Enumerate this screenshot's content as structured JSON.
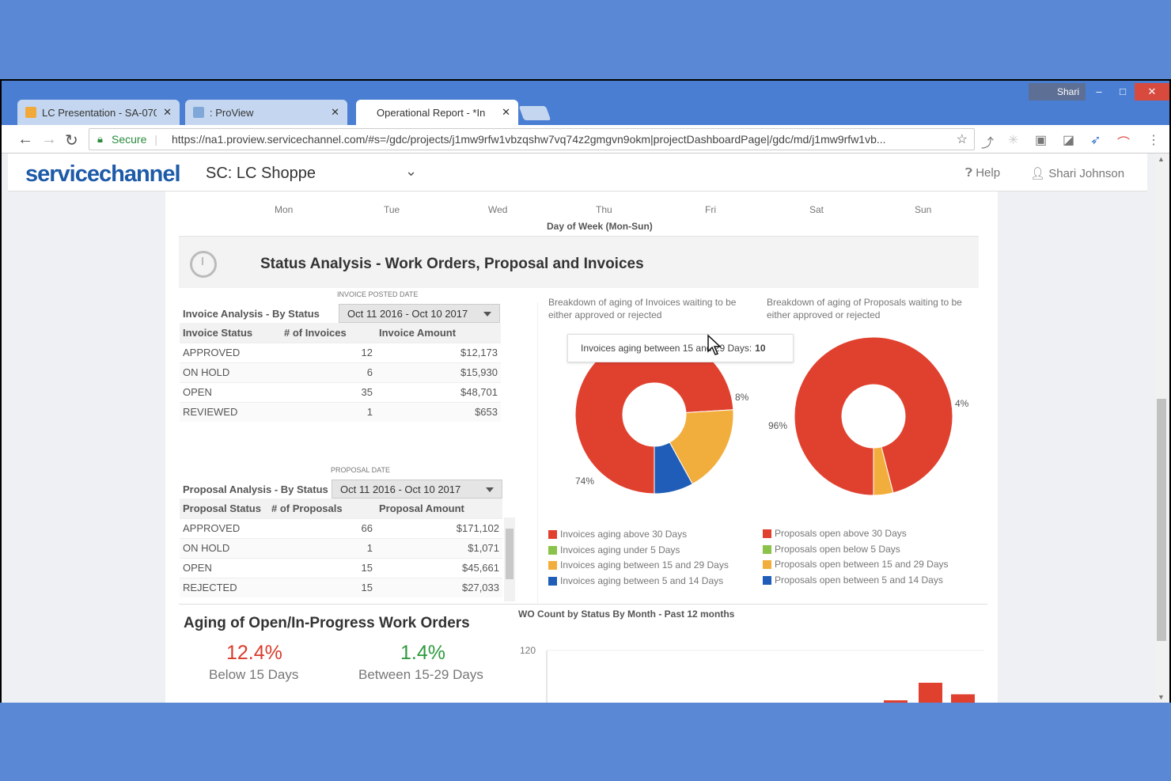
{
  "browser": {
    "tabs": [
      {
        "title": "LC Presentation - SA-070",
        "icon": "slides-icon",
        "color": "#f1a93a"
      },
      {
        "title": ": ProView",
        "icon": "proview-icon",
        "color": "#7fa8d8"
      },
      {
        "title": "Operational Report - *In",
        "icon": "none",
        "color": "#ffffff"
      }
    ],
    "user": "Shari",
    "secure_label": "Secure",
    "url": "https://na1.proview.servicechannel.com/#s=/gdc/projects/j1mw9rfw1vbzqshw7vq74z2gmgvn9okm|projectDashboardPage|/gdc/md/j1mw9rfw1vb..."
  },
  "header": {
    "logo": "servicechannel",
    "org": "SC: LC Shoppe",
    "help": "Help",
    "user": "Shari Johnson"
  },
  "week_axis": {
    "days": [
      "Mon",
      "Tue",
      "Wed",
      "Thu",
      "Fri",
      "Sat",
      "Sun"
    ],
    "title": "Day of Week (Mon-Sun)"
  },
  "status_panel": {
    "title": "Status Analysis - Work Orders, Proposal and Invoices"
  },
  "invoice": {
    "date_caption": "INVOICE POSTED DATE",
    "label": "Invoice Analysis - By Status",
    "date_range": "Oct 11 2016 - Oct 10 2017",
    "columns": [
      "Invoice Status",
      "# of Invoices",
      "Invoice Amount"
    ],
    "rows": [
      {
        "status": "APPROVED",
        "count": "12",
        "amount": "$12,173"
      },
      {
        "status": "ON HOLD",
        "count": "6",
        "amount": "$15,930"
      },
      {
        "status": "OPEN",
        "count": "35",
        "amount": "$48,701"
      },
      {
        "status": "REVIEWED",
        "count": "1",
        "amount": "$653"
      }
    ]
  },
  "proposal": {
    "date_caption": "PROPOSAL DATE",
    "label": "Proposal Analysis - By Status",
    "date_range": "Oct 11 2016 - Oct 10 2017",
    "columns": [
      "Proposal Status",
      "# of Proposals",
      "Proposal Amount"
    ],
    "rows": [
      {
        "status": "APPROVED",
        "count": "66",
        "amount": "$171,102"
      },
      {
        "status": "ON HOLD",
        "count": "1",
        "amount": "$1,071"
      },
      {
        "status": "OPEN",
        "count": "15",
        "amount": "$45,661"
      },
      {
        "status": "REJECTED",
        "count": "15",
        "amount": "$27,033"
      }
    ]
  },
  "invoice_donut": {
    "description": "Breakdown of aging of Invoices waiting to be either approved or rejected",
    "tooltip_label": "Invoices aging between 15 and 29 Days:",
    "tooltip_value": "10",
    "slice_labels": [
      "74%",
      "8%"
    ],
    "legend": [
      {
        "label": "Invoices aging above 30 Days",
        "color": "#e0412f"
      },
      {
        "label": "Invoices aging under 5 Days",
        "color": "#8bc34a"
      },
      {
        "label": "Invoices aging between 15 and 29 Days",
        "color": "#f2ae3d"
      },
      {
        "label": "Invoices aging between 5 and 14 Days",
        "color": "#1f5db8"
      }
    ]
  },
  "proposal_donut": {
    "description": "Breakdown of aging of Proposals waiting to be either approved or rejected",
    "slice_labels": [
      "96%",
      "4%"
    ],
    "legend": [
      {
        "label": "Proposals open above 30 Days",
        "color": "#e0412f"
      },
      {
        "label": "Proposals open below 5 Days",
        "color": "#8bc34a"
      },
      {
        "label": "Proposals open between 15 and 29 Days",
        "color": "#f2ae3d"
      },
      {
        "label": "Proposals open between 5 and 14 Days",
        "color": "#1f5db8"
      }
    ]
  },
  "chart_data": [
    {
      "type": "pie",
      "title": "Breakdown of aging of Invoices waiting to be either approved or rejected",
      "labels": [
        "Invoices aging above 30 Days",
        "Invoices aging between 15 and 29 Days",
        "Invoices aging between 5 and 14 Days"
      ],
      "values": [
        74,
        18,
        8
      ],
      "colors": [
        "#e0412f",
        "#f2ae3d",
        "#1f5db8"
      ]
    },
    {
      "type": "pie",
      "title": "Breakdown of aging of Proposals waiting to be either approved or rejected",
      "labels": [
        "Proposals open above 30 Days",
        "Proposals open between 15 and 29 Days"
      ],
      "values": [
        96,
        4
      ],
      "colors": [
        "#e0412f",
        "#f2ae3d"
      ]
    },
    {
      "type": "bar",
      "title": "WO Count by Status By Month - Past 12 months",
      "ytick": "120",
      "values": [
        12,
        50,
        25
      ],
      "ylim": [
        0,
        120
      ],
      "colors": [
        "#e0412f"
      ]
    }
  ],
  "aging": {
    "title": "Aging of Open/In-Progress Work Orders",
    "kpis": [
      {
        "value": "12.4%",
        "label": "Below 15 Days",
        "color": "#d93b2b"
      },
      {
        "value": "1.4%",
        "label": "Between 15-29 Days",
        "color": "#2e9a3e"
      }
    ]
  },
  "wo_chart": {
    "title": "WO Count by Status By Month - Past 12 months",
    "ytick": "120"
  }
}
